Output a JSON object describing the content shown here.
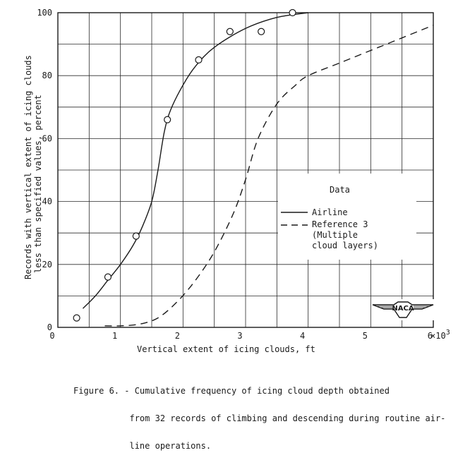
{
  "chart_data": {
    "type": "line",
    "xlabel": "Vertical extent of icing clouds, ft",
    "ylabel_lines": [
      "Records with vertical extent of icing clouds",
      "less than specified values, percent"
    ],
    "x_multiplier_label": "×10",
    "x_multiplier_exp": "3",
    "xlim": [
      0,
      6
    ],
    "ylim": [
      0,
      100
    ],
    "x_ticks": [
      0,
      1,
      2,
      3,
      4,
      5,
      6
    ],
    "x_tick_labels": [
      "0",
      "1",
      "2",
      "3",
      "4",
      "5",
      "6"
    ],
    "y_ticks": [
      0,
      20,
      40,
      60,
      80,
      100
    ],
    "y_tick_labels": [
      "0",
      "20",
      "40",
      "60",
      "80",
      "100"
    ],
    "x_grid": [
      0.5,
      1,
      1.5,
      2,
      2.5,
      3,
      3.5,
      4,
      4.5,
      5,
      5.5
    ],
    "y_grid": [
      10,
      20,
      30,
      40,
      50,
      60,
      70,
      80,
      90
    ],
    "grid": true,
    "legend_title": "Data",
    "legend_placement": "right",
    "series": [
      {
        "name": "Airline",
        "style": "solid",
        "curve": [
          [
            0.4,
            6
          ],
          [
            0.6,
            10
          ],
          [
            0.8,
            15
          ],
          [
            1.0,
            20
          ],
          [
            1.2,
            26
          ],
          [
            1.35,
            32
          ],
          [
            1.5,
            40
          ],
          [
            1.6,
            50
          ],
          [
            1.7,
            62
          ],
          [
            1.8,
            69
          ],
          [
            2.0,
            77
          ],
          [
            2.2,
            83
          ],
          [
            2.5,
            89
          ],
          [
            3.0,
            95
          ],
          [
            3.5,
            98.5
          ],
          [
            4.0,
            100
          ]
        ],
        "points": [
          [
            0.3,
            3
          ],
          [
            0.8,
            16
          ],
          [
            1.25,
            29
          ],
          [
            1.75,
            66
          ],
          [
            2.25,
            85
          ],
          [
            2.75,
            94
          ],
          [
            3.25,
            94
          ],
          [
            3.75,
            100
          ]
        ]
      },
      {
        "name": "Reference 3",
        "name_extra_lines": [
          "(Multiple",
          "cloud layers)"
        ],
        "style": "dashed",
        "curve": [
          [
            0.75,
            0.5
          ],
          [
            1.0,
            0.5
          ],
          [
            1.3,
            1
          ],
          [
            1.6,
            3
          ],
          [
            1.9,
            8
          ],
          [
            2.2,
            15
          ],
          [
            2.5,
            24
          ],
          [
            2.8,
            36
          ],
          [
            3.0,
            47
          ],
          [
            3.2,
            60
          ],
          [
            3.5,
            71
          ],
          [
            3.8,
            77
          ],
          [
            4.0,
            80
          ],
          [
            4.5,
            84
          ],
          [
            5.0,
            88
          ],
          [
            5.5,
            92
          ],
          [
            6.0,
            96
          ]
        ]
      }
    ]
  },
  "logo": {
    "text": "NACA"
  },
  "caption": {
    "lines": [
      "Figure 6. - Cumulative frequency of icing cloud depth obtained",
      "           from 32 records of climbing and descending during routine air-",
      "           line operations."
    ]
  }
}
